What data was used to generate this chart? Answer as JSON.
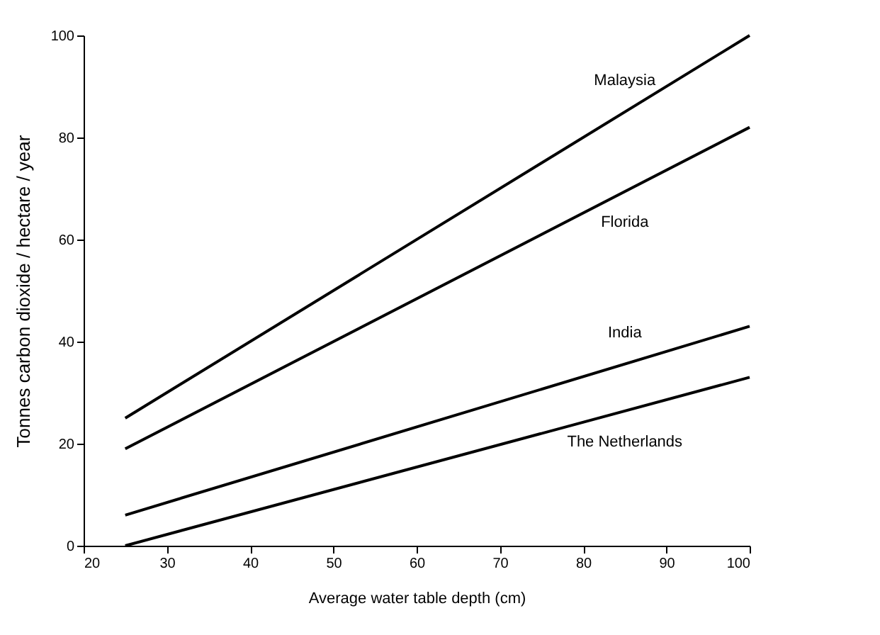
{
  "chart_data": {
    "type": "line",
    "xlabel": "Average water table depth (cm)",
    "ylabel": "Tonnes carbon dioxide / hectare / year",
    "xlim": [
      20,
      100
    ],
    "xticks": [
      20,
      30,
      40,
      50,
      60,
      70,
      80,
      90,
      100
    ],
    "ylim": [
      0,
      100
    ],
    "yticks": [
      0,
      20,
      40,
      60,
      80,
      100
    ],
    "grid": false,
    "legend": false,
    "marker": "none",
    "line_style": "solid",
    "x": [
      25,
      100
    ],
    "series": [
      {
        "name": "Malaysia",
        "color": "#000000",
        "values": [
          25,
          100
        ]
      },
      {
        "name": "Florida",
        "color": "#000000",
        "values": [
          19,
          82
        ]
      },
      {
        "name": "India",
        "color": "#000000",
        "values": [
          6,
          43
        ]
      },
      {
        "name": "The Netherlands",
        "color": "#000000",
        "values": [
          0,
          33
        ]
      }
    ]
  }
}
